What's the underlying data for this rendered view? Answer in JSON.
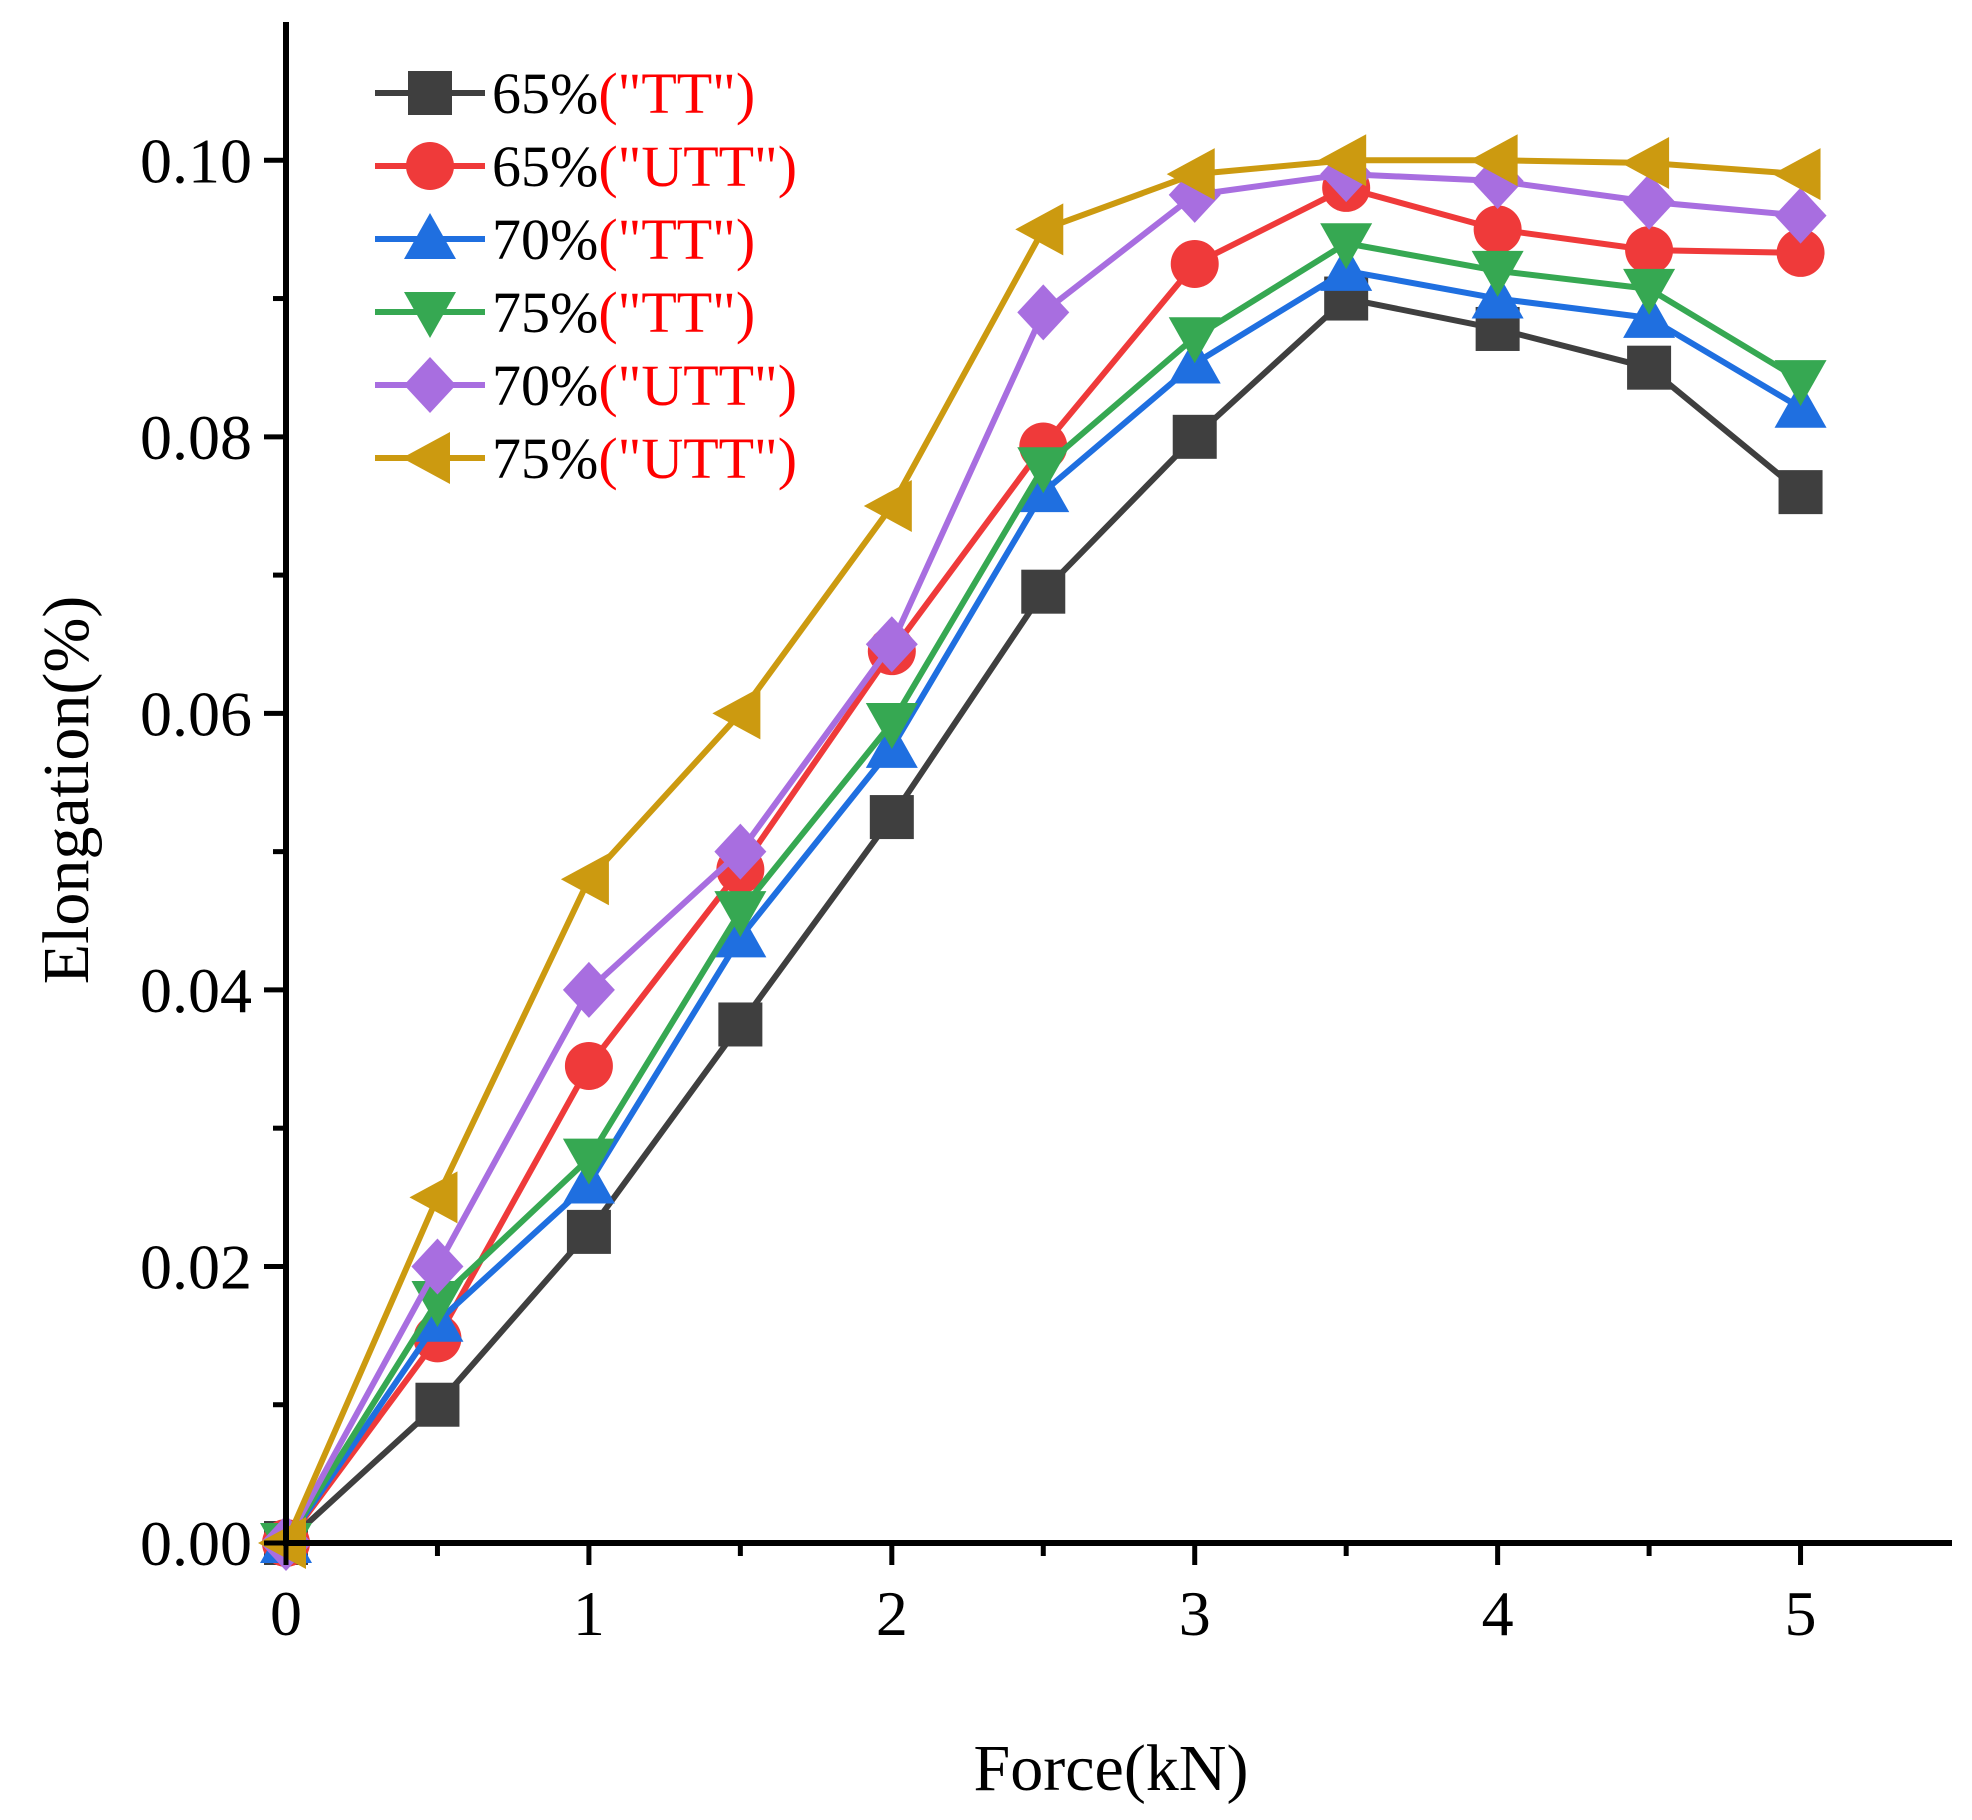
{
  "chart_data": {
    "type": "line",
    "title": "",
    "xlabel": "Force(kN)",
    "ylabel": "Elongation(%)",
    "xlim": [
      0,
      5.5
    ],
    "ylim": [
      0,
      0.11
    ],
    "x_ticks": [
      0,
      1,
      2,
      3,
      4,
      5
    ],
    "x_tick_labels": [
      "0",
      "1",
      "2",
      "3",
      "4",
      "5"
    ],
    "y_ticks": [
      0,
      0.02,
      0.04,
      0.06,
      0.08,
      0.1
    ],
    "y_tick_labels": [
      "0.00",
      "0.02",
      "0.04",
      "0.06",
      "0.08",
      "0.10"
    ],
    "grid": false,
    "legend_position": "top-left",
    "x": [
      0,
      0.5,
      1,
      1.5,
      2,
      2.5,
      3,
      3.5,
      4,
      4.5,
      5
    ],
    "series": [
      {
        "name": "65%(\"TT\")",
        "legend_prefix": "65%",
        "legend_suffix": "(\"TT\")",
        "color": "#3f3f3f",
        "marker": "square",
        "values": [
          0,
          0.01,
          0.0225,
          0.0375,
          0.0525,
          0.0688,
          0.08,
          0.09,
          0.0878,
          0.085,
          0.076
        ]
      },
      {
        "name": "65%(\"UTT\")",
        "legend_prefix": "65%",
        "legend_suffix": "(\"UTT\")",
        "color": "#ef3a3a",
        "marker": "circle",
        "values": [
          0,
          0.0148,
          0.0345,
          0.0487,
          0.0645,
          0.0793,
          0.0925,
          0.098,
          0.095,
          0.0935,
          0.0933
        ]
      },
      {
        "name": "70%(\"TT\")",
        "legend_prefix": "70%",
        "legend_suffix": "(\"TT\")",
        "color": "#1f6fe0",
        "marker": "triangle-up",
        "values": [
          0,
          0.016,
          0.026,
          0.0438,
          0.0575,
          0.076,
          0.0853,
          0.092,
          0.09,
          0.0886,
          0.0821
        ]
      },
      {
        "name": "75%(\"TT\")",
        "legend_prefix": "75%",
        "legend_suffix": "(\"TT\")",
        "color": "#36a852",
        "marker": "triangle-down",
        "values": [
          0,
          0.0175,
          0.0278,
          0.0457,
          0.0593,
          0.0778,
          0.0872,
          0.094,
          0.092,
          0.0907,
          0.0841
        ]
      },
      {
        "name": "70%(\"UTT\")",
        "legend_prefix": "70%",
        "legend_suffix": "(\"UTT\")",
        "color": "#a86ee0",
        "marker": "diamond",
        "values": [
          0,
          0.02,
          0.04,
          0.05,
          0.065,
          0.089,
          0.0975,
          0.099,
          0.0985,
          0.097,
          0.096
        ]
      },
      {
        "name": "75%(\"UTT\")",
        "legend_prefix": "75%",
        "legend_suffix": "(\"UTT\")",
        "color": "#cc9a10",
        "marker": "triangle-left",
        "values": [
          0,
          0.025,
          0.048,
          0.06,
          0.075,
          0.095,
          0.099,
          0.1,
          0.1,
          0.0998,
          0.099
        ]
      }
    ],
    "legend_suffix_color": "#ff0000"
  }
}
